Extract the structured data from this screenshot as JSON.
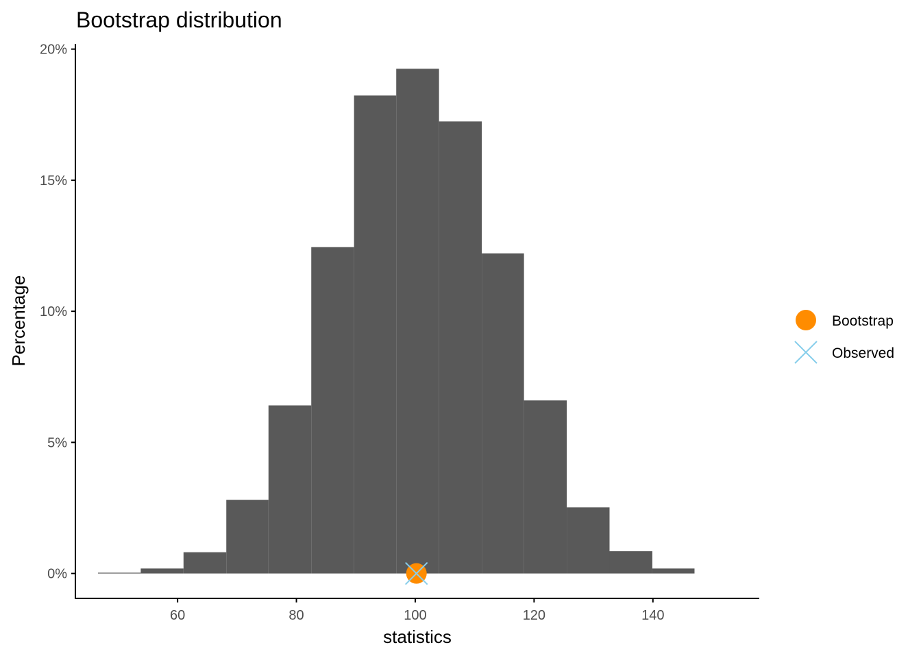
{
  "chart_data": {
    "type": "bar",
    "title": "Bootstrap distribution",
    "xlabel": "statistics",
    "ylabel": "Percentage",
    "xlim": [
      42.8,
      157.9
    ],
    "ylim": [
      -0.95,
      20.2
    ],
    "xticks": [
      60,
      80,
      100,
      120,
      140
    ],
    "xtick_labels": [
      "60",
      "80",
      "100",
      "120",
      "140"
    ],
    "yticks": [
      0,
      5,
      10,
      15,
      20
    ],
    "ytick_labels": [
      "0%",
      "5%",
      "10%",
      "15%",
      "20%"
    ],
    "grid": false,
    "legend_position": "right",
    "histogram": {
      "color": "#595959",
      "bins": [
        {
          "x0": 46.6,
          "x1": 53.8,
          "percent": 0.03
        },
        {
          "x0": 53.8,
          "x1": 61.0,
          "percent": 0.19
        },
        {
          "x0": 61.0,
          "x1": 68.2,
          "percent": 0.81
        },
        {
          "x0": 68.2,
          "x1": 75.3,
          "percent": 2.81
        },
        {
          "x0": 75.3,
          "x1": 82.5,
          "percent": 6.41
        },
        {
          "x0": 82.5,
          "x1": 89.7,
          "percent": 12.45
        },
        {
          "x0": 89.7,
          "x1": 96.8,
          "percent": 18.23
        },
        {
          "x0": 96.8,
          "x1": 104.0,
          "percent": 19.25
        },
        {
          "x0": 104.0,
          "x1": 111.2,
          "percent": 17.24
        },
        {
          "x0": 111.2,
          "x1": 118.3,
          "percent": 12.21
        },
        {
          "x0": 118.3,
          "x1": 125.5,
          "percent": 6.6
        },
        {
          "x0": 125.5,
          "x1": 132.7,
          "percent": 2.52
        },
        {
          "x0": 132.7,
          "x1": 139.9,
          "percent": 0.85
        },
        {
          "x0": 139.9,
          "x1": 147.0,
          "percent": 0.19
        }
      ]
    },
    "points": [
      {
        "name": "Bootstrap",
        "x": 100.2,
        "y": 0,
        "shape": "circle",
        "color": "#FF8C00"
      },
      {
        "name": "Observed",
        "x": 100.2,
        "y": 0,
        "shape": "cross",
        "color": "#87CEEB"
      }
    ],
    "legend": [
      {
        "label": "Bootstrap",
        "shape": "circle",
        "color": "#FF8C00"
      },
      {
        "label": "Observed",
        "shape": "cross",
        "color": "#87CEEB"
      }
    ]
  }
}
